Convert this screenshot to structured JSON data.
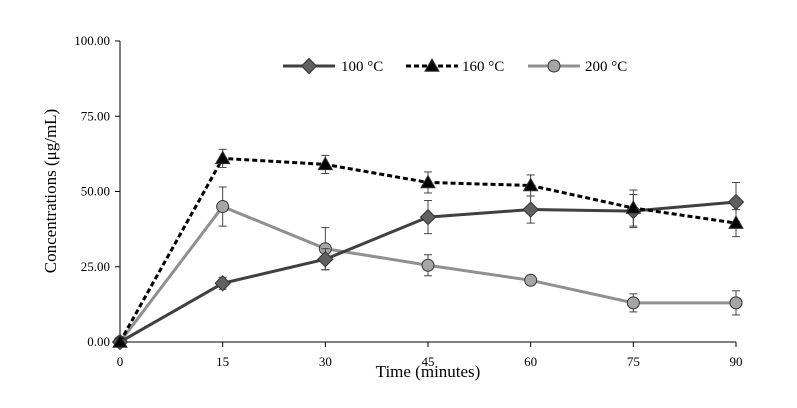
{
  "chart_data": {
    "type": "line",
    "title": "",
    "xlabel": "Time (minutes)",
    "ylabel": "Concentrations (μg/mL)",
    "x": [
      0,
      15,
      30,
      45,
      60,
      75,
      90
    ],
    "x_tick_labels": [
      "0",
      "15",
      "30",
      "45",
      "60",
      "75",
      "90"
    ],
    "xlim": [
      0,
      90
    ],
    "ylim": [
      0,
      100
    ],
    "y_ticks": [
      0,
      25,
      50,
      75,
      100
    ],
    "y_tick_labels": [
      "0.00",
      "25.00",
      "50.00",
      "75.00",
      "100.00"
    ],
    "grid": false,
    "legend_position": "top",
    "series": [
      {
        "name": "100  °C",
        "marker": "diamond",
        "line_style": "solid",
        "color": "#404040",
        "marker_color": "#606060",
        "values": [
          0,
          19.5,
          27.5,
          41.5,
          44.0,
          43.5,
          46.5
        ],
        "errors": [
          0,
          2.0,
          3.5,
          5.5,
          4.5,
          5.5,
          6.5
        ]
      },
      {
        "name": "160  °C",
        "marker": "triangle",
        "line_style": "dashed",
        "color": "#000000",
        "marker_color": "#000000",
        "values": [
          0,
          61.0,
          59.0,
          53.0,
          52.0,
          44.5,
          39.5
        ],
        "errors": [
          0,
          3.0,
          3.0,
          3.5,
          3.5,
          6.0,
          4.5
        ]
      },
      {
        "name": "200  °C",
        "marker": "circle",
        "line_style": "solid",
        "color": "#909090",
        "marker_color": "#a6a6a6",
        "values": [
          0,
          45.0,
          31.0,
          25.5,
          20.5,
          13.0,
          13.0
        ],
        "errors": [
          0,
          6.5,
          7.0,
          3.5,
          1.5,
          3.0,
          4.0
        ]
      }
    ]
  }
}
